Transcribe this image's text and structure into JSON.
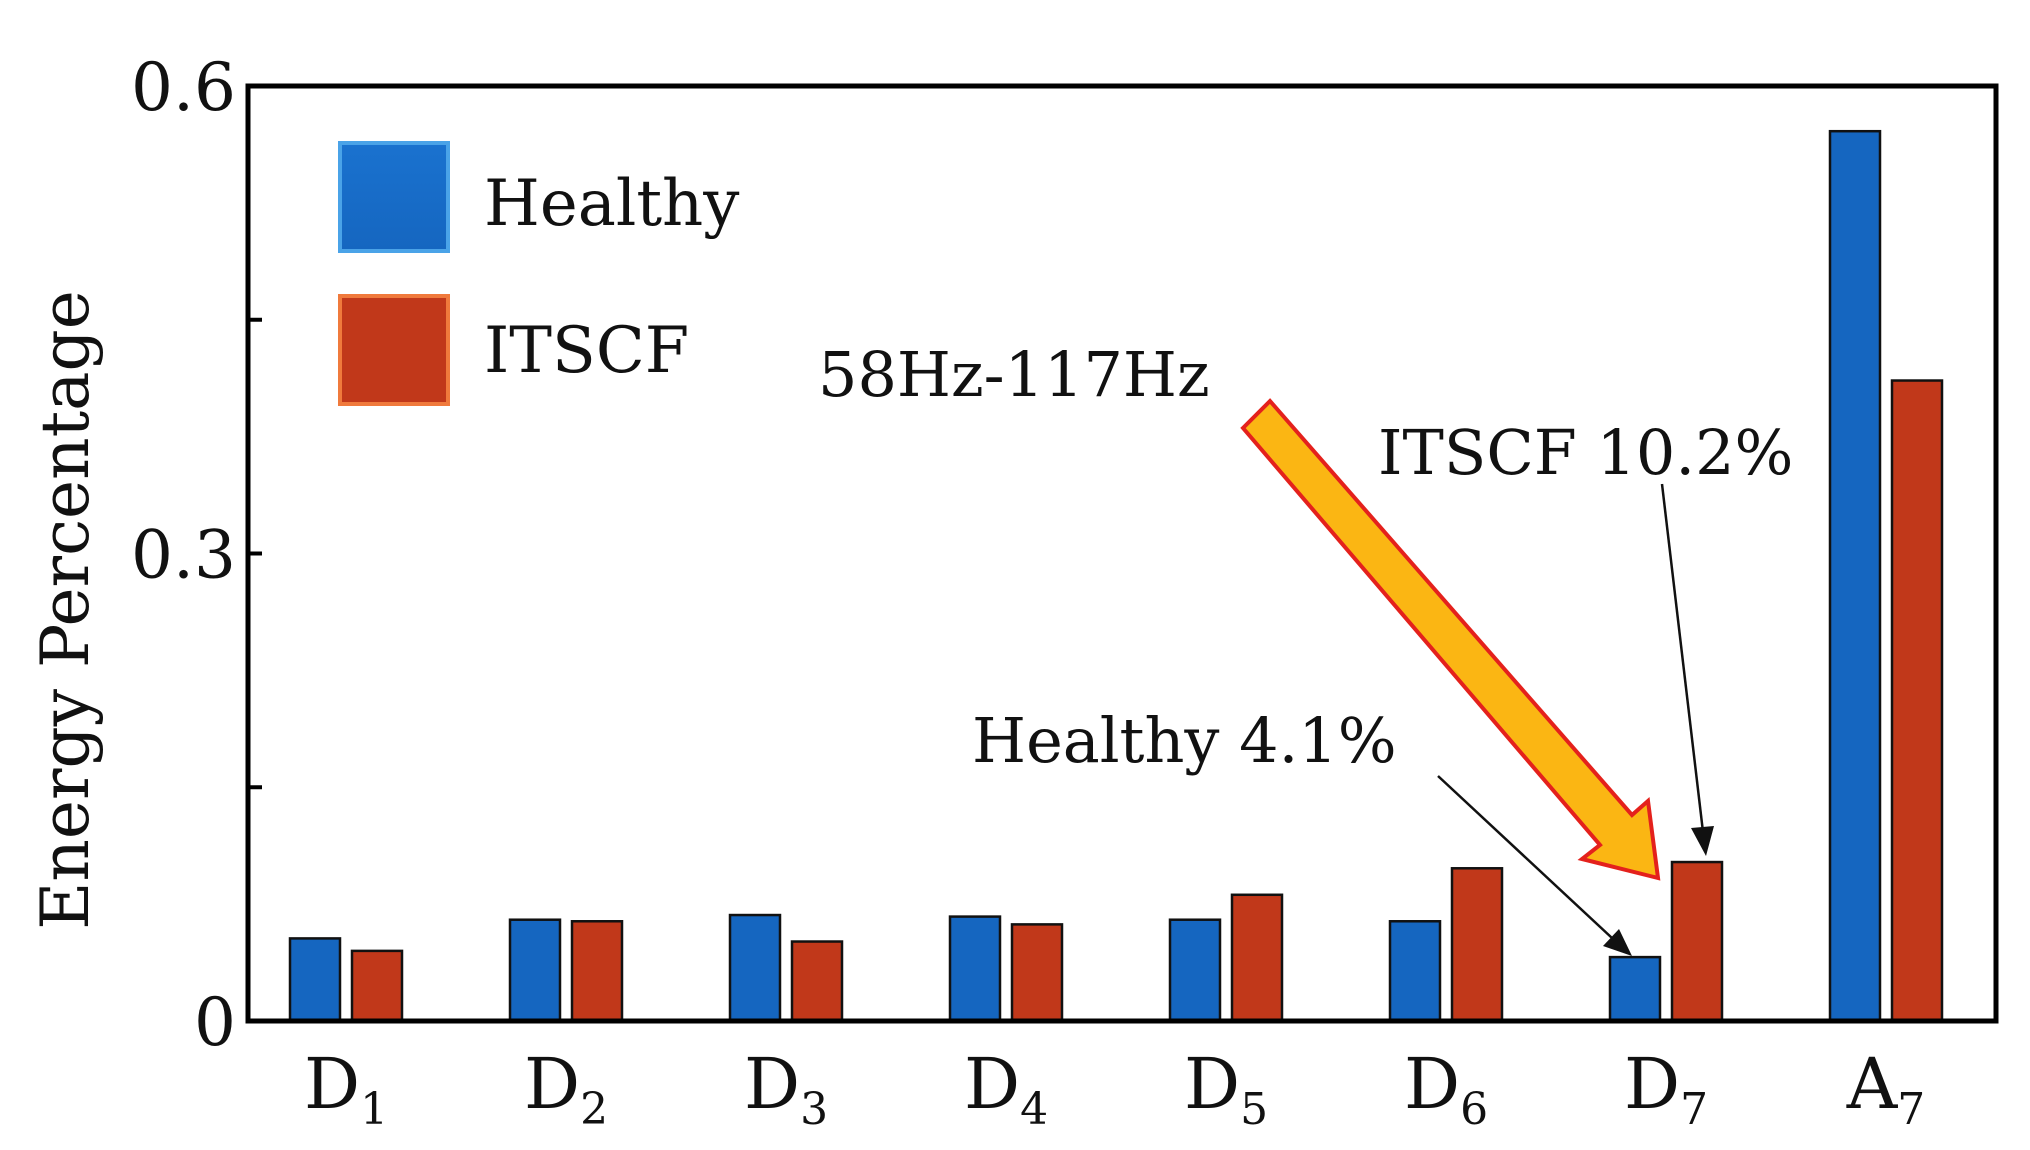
{
  "chart_data": {
    "type": "bar",
    "title": "",
    "xlabel": "",
    "ylabel": "Energy Percentage",
    "ylim": [
      0,
      0.6
    ],
    "yticks": [
      {
        "value": 0,
        "label": "0"
      },
      {
        "value": 0.3,
        "label": "0.3"
      },
      {
        "value": 0.6,
        "label": "0.6"
      }
    ],
    "categories": [
      {
        "base": "D",
        "sub": "1"
      },
      {
        "base": "D",
        "sub": "2"
      },
      {
        "base": "D",
        "sub": "3"
      },
      {
        "base": "D",
        "sub": "4"
      },
      {
        "base": "D",
        "sub": "5"
      },
      {
        "base": "D",
        "sub": "6"
      },
      {
        "base": "D",
        "sub": "7"
      },
      {
        "base": "A",
        "sub": "7"
      }
    ],
    "series": [
      {
        "name": "Healthy",
        "color": "#1566c0",
        "values": [
          0.053,
          0.065,
          0.068,
          0.067,
          0.065,
          0.064,
          0.041,
          0.571
        ]
      },
      {
        "name": "ITSCF",
        "color": "#c1381a",
        "values": [
          0.045,
          0.064,
          0.051,
          0.062,
          0.081,
          0.098,
          0.102,
          0.411
        ]
      }
    ],
    "legend_position": "top-left",
    "annotations": [
      {
        "text": "58Hz-117Hz",
        "style": "big-yellow-arrow",
        "target": "D7"
      },
      {
        "text": "ITSCF 10.2%",
        "style": "thin-arrow",
        "target": "D7 ITSCF"
      },
      {
        "text": "Healthy 4.1%",
        "style": "thin-arrow",
        "target": "D7 Healthy"
      }
    ]
  }
}
